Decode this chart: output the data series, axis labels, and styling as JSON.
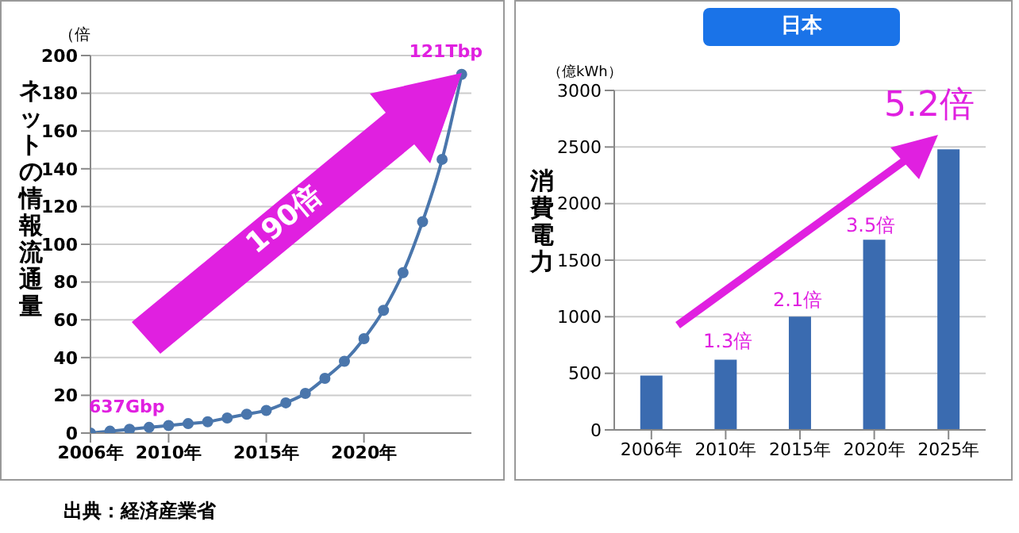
{
  "chart_data": [
    {
      "type": "line",
      "ylabel": "ネットの情報流通量",
      "x": [
        2006,
        2007,
        2008,
        2009,
        2010,
        2011,
        2012,
        2013,
        2014,
        2015,
        2016,
        2017,
        2018,
        2019,
        2020,
        2021,
        2022,
        2023,
        2024,
        2025
      ],
      "series": [
        {
          "color": "#4a76ac",
          "values": [
            0,
            1,
            2,
            3,
            4,
            5,
            6,
            8,
            10,
            12,
            16,
            21,
            29,
            38,
            50,
            65,
            85,
            112,
            145,
            190
          ]
        }
      ],
      "xlim": [
        2006,
        2025.5
      ],
      "xticks": [
        {
          "value": 2006,
          "label": "2006年"
        },
        {
          "value": 2010,
          "label": "2010年"
        },
        {
          "value": 2015,
          "label": "2015年"
        },
        {
          "value": 2020,
          "label": "2020年"
        }
      ],
      "ylim": [
        0,
        200
      ],
      "yticks": [
        0,
        20,
        40,
        60,
        80,
        100,
        120,
        140,
        160,
        180,
        200
      ],
      "grid": "y",
      "marker": "circle",
      "legend": false,
      "annotations": [
        "（倍",
        "190倍",
        {
          "text": "637Gbp",
          "x": 2006,
          "y": 0
        },
        {
          "text": "121Tbp",
          "x": 2025,
          "y": 190
        },
        "出典：経済産業省"
      ]
    },
    {
      "type": "bar",
      "title": "日本",
      "ylabel": "消費電力",
      "categories": [
        "2006年",
        "2010年",
        "2015年",
        "2020年",
        "2025年"
      ],
      "series": [
        {
          "color": "#3a6bb0",
          "values": [
            480,
            620,
            1000,
            1680,
            2480
          ]
        }
      ],
      "ylim": [
        0,
        3000
      ],
      "yticks": [
        0,
        500,
        1000,
        1500,
        2000,
        2500,
        3000
      ],
      "grid": "y",
      "legend": false,
      "annotations": [
        "（億kWh）",
        "1.3倍",
        "2.1倍",
        "3.5倍",
        "5.2倍"
      ]
    }
  ]
}
